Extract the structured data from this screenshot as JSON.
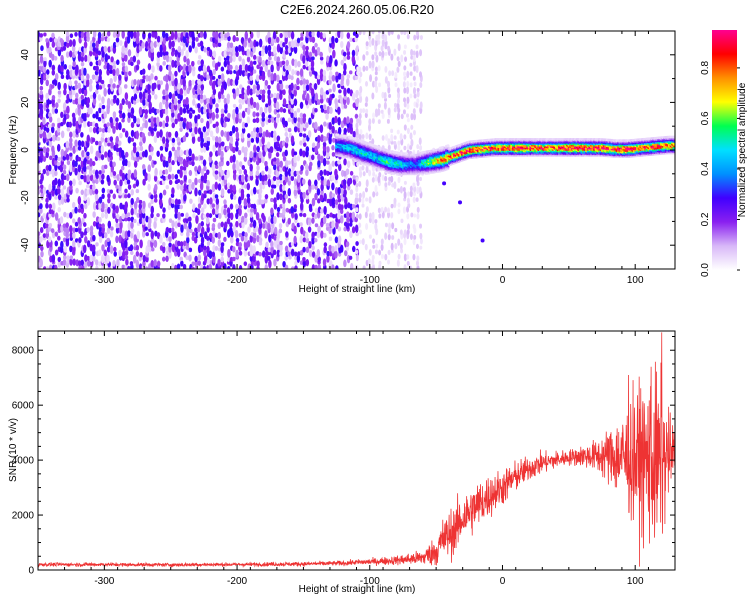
{
  "figure": {
    "title": "C2E6.2024.260.05.06.R20"
  },
  "chart_data": [
    {
      "type": "heatmap",
      "xlabel": "Height of straight line (km)",
      "ylabel": "Frequency (Hz)",
      "xlim": [
        -350,
        130
      ],
      "ylim": [
        -50,
        50
      ],
      "xticks": [
        -300,
        -200,
        -100,
        0,
        100
      ],
      "yticks": [
        -40,
        -20,
        0,
        20,
        40
      ],
      "colorbar": {
        "label": "Normalized spectral amplitude",
        "range": [
          0.0,
          0.95
        ],
        "ticks": [
          0.0,
          0.2,
          0.4,
          0.6,
          0.8
        ],
        "tick_labels": [
          "0.0",
          "0.2",
          "0.4",
          "0.6",
          "0.8"
        ],
        "colormap": [
          "#ffffff",
          "#d8b8f8",
          "#8a20f0",
          "#4000ff",
          "#0090ff",
          "#00e0ff",
          "#00ff50",
          "#ffff00",
          "#ff9000",
          "#ff0000",
          "#ff0090"
        ]
      },
      "noise_region": {
        "x_from": -350,
        "x_to": -110,
        "amplitude": 0.18
      },
      "faint_noise_region": {
        "x_from": -110,
        "x_to": -60,
        "amplitude": 0.06
      },
      "signal_ridge": {
        "x": [
          -125,
          -115,
          -105,
          -95,
          -85,
          -75,
          -65,
          -55,
          -45,
          -35,
          -25,
          -15,
          -5,
          5,
          15,
          25,
          35,
          45,
          55,
          65,
          75,
          85,
          95,
          105,
          115,
          125
        ],
        "frequency": [
          2,
          1,
          -1,
          -3,
          -5,
          -6,
          -6,
          -5,
          -4,
          -2,
          0,
          0.5,
          1,
          1,
          1,
          1,
          1,
          1,
          1,
          1,
          1,
          0.5,
          0.5,
          1,
          1.5,
          2
        ],
        "amplitude": [
          0.4,
          0.45,
          0.5,
          0.45,
          0.55,
          0.45,
          0.35,
          0.6,
          0.75,
          0.85,
          0.9,
          0.85,
          0.8,
          0.85,
          0.9,
          0.85,
          0.8,
          0.85,
          0.9,
          0.85,
          0.9,
          0.85,
          0.9,
          0.8,
          0.85,
          0.8
        ]
      },
      "outliers": [
        {
          "x": -44,
          "frequency": -14
        },
        {
          "x": -32,
          "frequency": -22
        },
        {
          "x": -15,
          "frequency": -38
        }
      ]
    },
    {
      "type": "line",
      "xlabel": "Height of straight line (km)",
      "ylabel": "SNR (10 * v/v)",
      "xlim": [
        -350,
        130
      ],
      "ylim": [
        0,
        8700
      ],
      "xticks": [
        -300,
        -200,
        -100,
        0,
        100
      ],
      "yticks": [
        0,
        2000,
        4000,
        6000,
        8000
      ],
      "color": "#ee3333",
      "series": [
        {
          "x": [
            -350,
            -300,
            -250,
            -200,
            -150,
            -120,
            -100,
            -80,
            -60,
            -50,
            -45,
            -40,
            -35,
            -30,
            -20,
            -10,
            0,
            10,
            20,
            30,
            40,
            50,
            60,
            70,
            80,
            90,
            100,
            110,
            115,
            120,
            125,
            130
          ],
          "mean": [
            200,
            200,
            190,
            200,
            220,
            250,
            300,
            350,
            450,
            700,
            1100,
            1300,
            1500,
            1900,
            2300,
            2700,
            3000,
            3400,
            3700,
            3900,
            4000,
            4100,
            4150,
            4150,
            4150,
            4100,
            4050,
            4000,
            3900,
            3950,
            4150,
            4300
          ],
          "spread": [
            60,
            60,
            60,
            60,
            70,
            80,
            100,
            150,
            250,
            500,
            700,
            800,
            800,
            800,
            800,
            700,
            600,
            500,
            400,
            350,
            300,
            250,
            350,
            500,
            900,
            1500,
            2200,
            2700,
            3000,
            2600,
            1500,
            800
          ]
        }
      ],
      "peaks": [
        {
          "x": 120,
          "y": 8650
        },
        {
          "x": 112,
          "y": 7400
        },
        {
          "x": 95,
          "y": 7100
        }
      ]
    }
  ]
}
